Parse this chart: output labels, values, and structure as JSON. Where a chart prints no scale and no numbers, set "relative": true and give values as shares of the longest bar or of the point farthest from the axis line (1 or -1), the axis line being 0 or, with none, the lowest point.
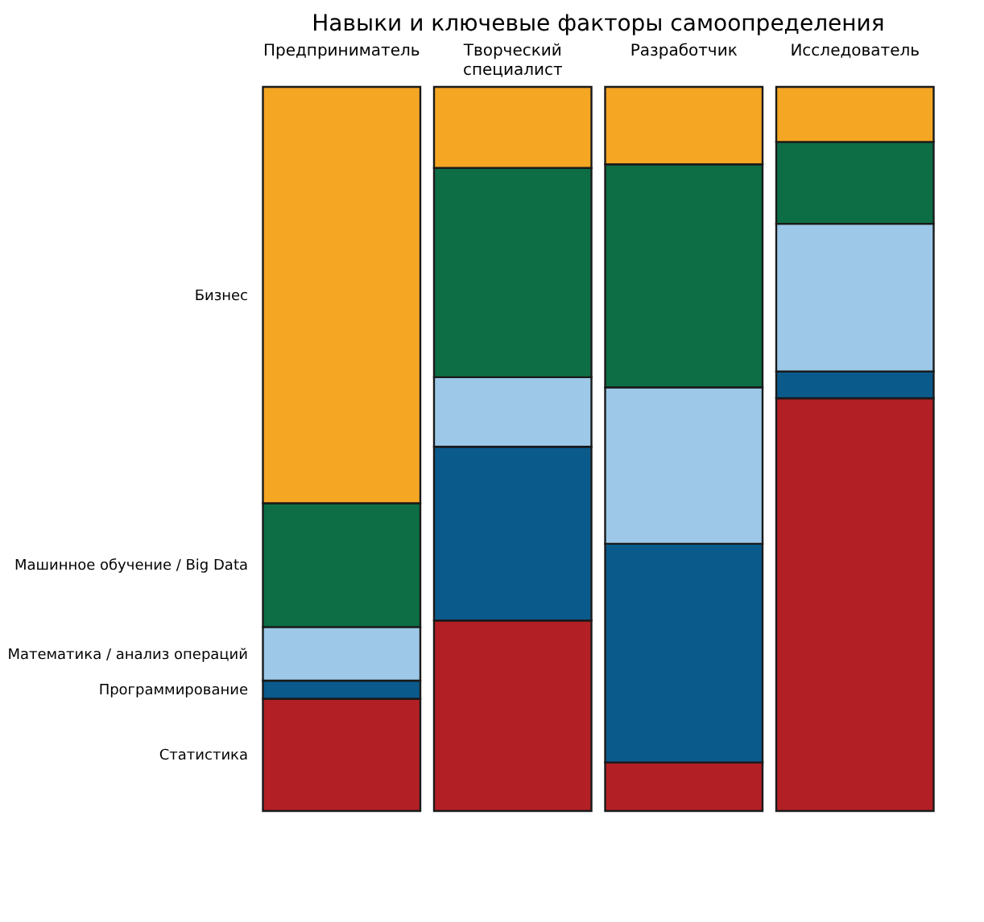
{
  "chart_data": {
    "type": "bar",
    "title": "Навыки и ключевые факторы самоопределения",
    "categories": [
      "Предприниматель",
      "Творческий специалист",
      "Разработчик",
      "Исследователь"
    ],
    "stacked": true,
    "relative": true,
    "legend": false,
    "series": [
      {
        "name": "Статистика",
        "color": "#b22025",
        "values": [
          0.155,
          0.263,
          0.067,
          0.57
        ]
      },
      {
        "name": "Программирование",
        "color": "#0b5a8c",
        "values": [
          0.025,
          0.24,
          0.302,
          0.037
        ]
      },
      {
        "name": "Математика / анализ операций",
        "color": "#9dc8e8",
        "values": [
          0.074,
          0.096,
          0.216,
          0.204
        ]
      },
      {
        "name": "Машинное обучение / Big Data",
        "color": "#0d6e45",
        "values": [
          0.171,
          0.289,
          0.308,
          0.113
        ]
      },
      {
        "name": "Бизнес",
        "color": "#f5a623",
        "values": [
          0.575,
          0.112,
          0.107,
          0.076
        ]
      }
    ]
  }
}
